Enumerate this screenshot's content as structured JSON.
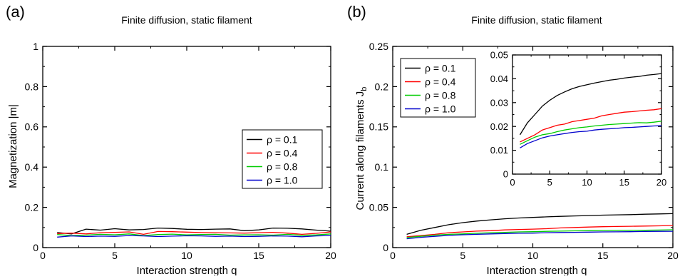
{
  "chart_data": [
    {
      "panel_label": "(a)",
      "type": "line",
      "title": "Finite diffusion, static filament",
      "xlabel": "Interaction strength q",
      "ylabel": "Magnetization |m|",
      "xlim": [
        0,
        20
      ],
      "ylim": [
        0,
        1
      ],
      "xticks": [
        "0",
        "5",
        "10",
        "15",
        "20"
      ],
      "yticks": [
        "0",
        "0.2",
        "0.4",
        "0.6",
        "0.8",
        "1"
      ],
      "grid": false,
      "legend": "center-right",
      "x": [
        1,
        2,
        3,
        4,
        5,
        6,
        7,
        8,
        9,
        10,
        11,
        12,
        13,
        14,
        15,
        16,
        17,
        18,
        19,
        20
      ],
      "series": [
        {
          "name": "ρ = 0.1",
          "color": "#000000",
          "values": [
            0.075,
            0.068,
            0.092,
            0.087,
            0.094,
            0.088,
            0.09,
            0.097,
            0.095,
            0.091,
            0.09,
            0.092,
            0.093,
            0.084,
            0.088,
            0.097,
            0.096,
            0.093,
            0.087,
            0.082
          ]
        },
        {
          "name": "ρ = 0.4",
          "color": "#ff0000",
          "values": [
            0.07,
            0.072,
            0.068,
            0.074,
            0.076,
            0.078,
            0.066,
            0.08,
            0.079,
            0.077,
            0.075,
            0.074,
            0.073,
            0.072,
            0.074,
            0.076,
            0.072,
            0.066,
            0.071,
            0.078
          ]
        },
        {
          "name": "ρ = 0.8",
          "color": "#00cc00",
          "values": [
            0.065,
            0.06,
            0.062,
            0.066,
            0.064,
            0.068,
            0.06,
            0.065,
            0.067,
            0.063,
            0.065,
            0.066,
            0.062,
            0.063,
            0.064,
            0.062,
            0.066,
            0.061,
            0.063,
            0.068
          ]
        },
        {
          "name": "ρ = 1.0",
          "color": "#0000cc",
          "values": [
            0.052,
            0.058,
            0.055,
            0.057,
            0.056,
            0.06,
            0.058,
            0.055,
            0.057,
            0.059,
            0.058,
            0.056,
            0.057,
            0.055,
            0.056,
            0.058,
            0.057,
            0.054,
            0.058,
            0.06
          ]
        }
      ]
    },
    {
      "panel_label": "(b)",
      "type": "line",
      "title": "Finite diffusion, static filament",
      "xlabel": "Interaction strength q",
      "ylabel": "Current along filaments J",
      "ylabel_sub": "b",
      "xlim": [
        0,
        20
      ],
      "ylim": [
        0,
        0.25
      ],
      "xticks": [
        "0",
        "5",
        "10",
        "15",
        "20"
      ],
      "yticks": [
        "0",
        "0.05",
        "0.1",
        "0.15",
        "0.2",
        "0.25"
      ],
      "grid": false,
      "legend": "top-left",
      "x": [
        1,
        2,
        3,
        4,
        5,
        6,
        7,
        8,
        9,
        10,
        11,
        12,
        13,
        14,
        15,
        16,
        17,
        18,
        19,
        20
      ],
      "series": [
        {
          "name": "ρ = 0.1",
          "color": "#000000",
          "values": [
            0.0165,
            0.0215,
            0.025,
            0.0285,
            0.031,
            0.033,
            0.0345,
            0.0358,
            0.0368,
            0.0375,
            0.0382,
            0.0388,
            0.0394,
            0.0398,
            0.0403,
            0.0407,
            0.041,
            0.0415,
            0.0418,
            0.0422
          ]
        },
        {
          "name": "ρ = 0.4",
          "color": "#ff0000",
          "values": [
            0.0135,
            0.015,
            0.0165,
            0.0185,
            0.0195,
            0.0205,
            0.021,
            0.022,
            0.0225,
            0.023,
            0.0235,
            0.0245,
            0.025,
            0.0255,
            0.026,
            0.0262,
            0.0265,
            0.0268,
            0.027,
            0.0275
          ]
        },
        {
          "name": "ρ = 0.8",
          "color": "#00cc00",
          "values": [
            0.0125,
            0.014,
            0.0155,
            0.0165,
            0.017,
            0.0178,
            0.0185,
            0.019,
            0.0195,
            0.0198,
            0.0202,
            0.0205,
            0.0208,
            0.021,
            0.0212,
            0.0214,
            0.0216,
            0.0215,
            0.0218,
            0.0222
          ]
        },
        {
          "name": "ρ = 1.0",
          "color": "#0000cc",
          "values": [
            0.011,
            0.0128,
            0.014,
            0.0152,
            0.016,
            0.0165,
            0.017,
            0.0175,
            0.0178,
            0.018,
            0.0185,
            0.0188,
            0.019,
            0.0192,
            0.0195,
            0.0196,
            0.0198,
            0.02,
            0.0202,
            0.0203
          ]
        }
      ],
      "inset": {
        "xlim": [
          0,
          20
        ],
        "ylim": [
          0,
          0.05
        ],
        "xticks": [
          "0",
          "5",
          "10",
          "15",
          "20"
        ],
        "yticks": [
          "0",
          "0.01",
          "0.02",
          "0.03",
          "0.04",
          "0.05"
        ]
      }
    }
  ]
}
